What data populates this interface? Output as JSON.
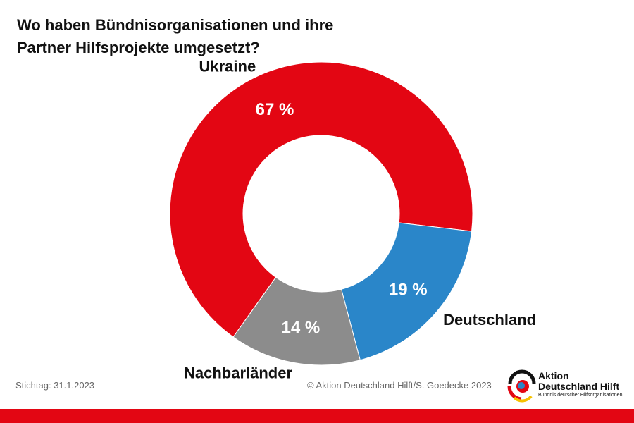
{
  "title": {
    "line1": "Wo haben Bündnisorganisationen und ihre",
    "line2": "Partner Hilfsprojekte umgesetzt?"
  },
  "chart_data": {
    "type": "pie",
    "donut": true,
    "slices": [
      {
        "name": "Ukraine",
        "value": 67,
        "label": "67 %",
        "color": "#e30613"
      },
      {
        "name": "Deutschland",
        "value": 19,
        "label": "19 %",
        "color": "#2a86c9"
      },
      {
        "name": "Nachbarländer",
        "value": 14,
        "label": "14 %",
        "color": "#8c8c8c"
      }
    ],
    "legend": "none"
  },
  "footer": {
    "stichtag": "Stichtag: 31.1.2023",
    "copyright": "© Aktion Deutschland Hilft/S. Goedecke 2023"
  },
  "logo": {
    "line1": "Aktion",
    "line2": "Deutschland Hilft",
    "line3": "Bündnis deutscher Hilfsorganisationen"
  },
  "colors": {
    "accent": "#e30613",
    "blue": "#2a86c9",
    "grey": "#8c8c8c"
  }
}
